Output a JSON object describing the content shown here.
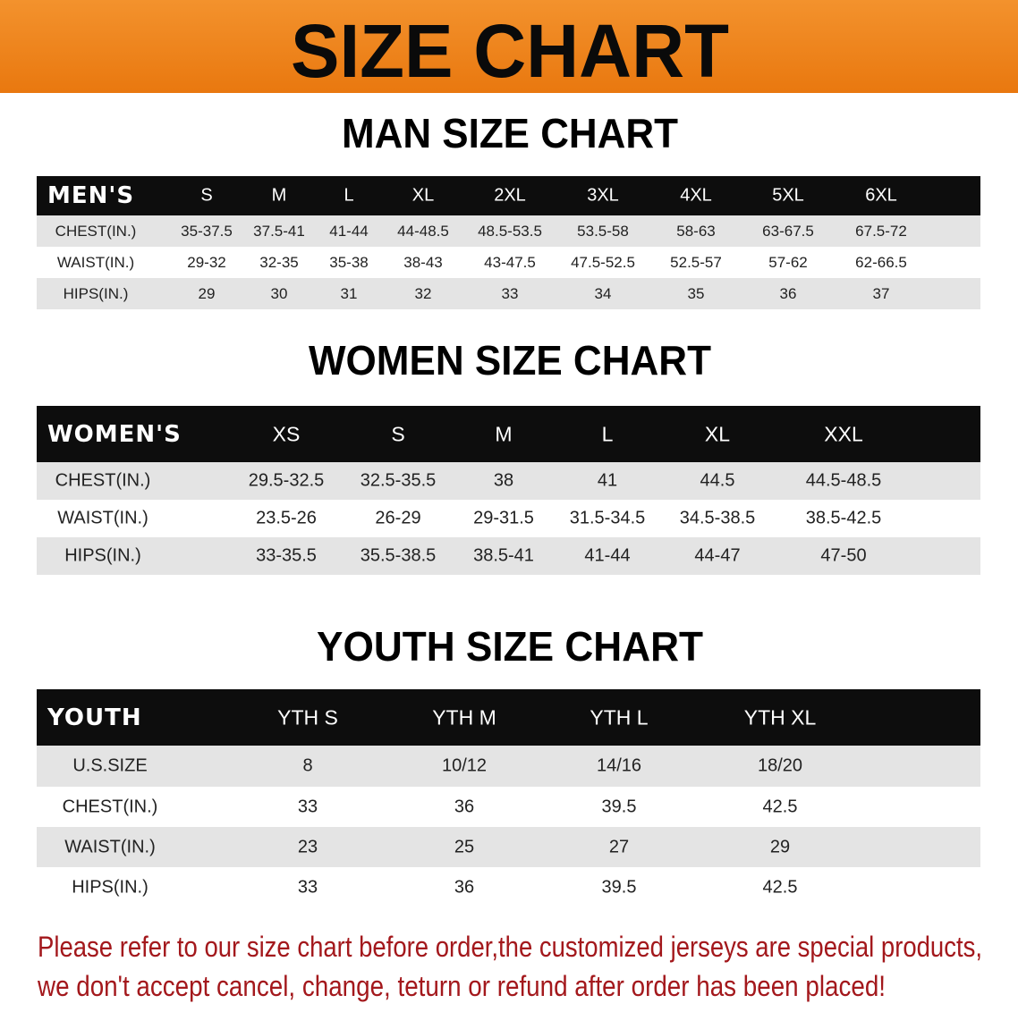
{
  "title": "SIZE CHART",
  "colors": {
    "banner": "#ee8420",
    "header_row": "#0d0d0d",
    "note_text": "#a3181c"
  },
  "men": {
    "section_title": "MAN SIZE CHART",
    "columns": [
      "MEN'S",
      "S",
      "M",
      "L",
      "XL",
      "2XL",
      "3XL",
      "4XL",
      "5XL",
      "6XL"
    ],
    "rows": [
      [
        "CHEST(IN.)",
        "35-37.5",
        "37.5-41",
        "41-44",
        "44-48.5",
        "48.5-53.5",
        "53.5-58",
        "58-63",
        "63-67.5",
        "67.5-72"
      ],
      [
        "WAIST(IN.)",
        "29-32",
        "32-35",
        "35-38",
        "38-43",
        "43-47.5",
        "47.5-52.5",
        "52.5-57",
        "57-62",
        "62-66.5"
      ],
      [
        "HIPS(IN.)",
        "29",
        "30",
        "31",
        "32",
        "33",
        "34",
        "35",
        "36",
        "37"
      ]
    ]
  },
  "women": {
    "section_title": "WOMEN SIZE CHART",
    "columns": [
      "WOMEN'S",
      "XS",
      "S",
      "M",
      "L",
      "XL",
      "XXL"
    ],
    "rows": [
      [
        "CHEST(IN.)",
        "29.5-32.5",
        "32.5-35.5",
        "38",
        "41",
        "44.5",
        "44.5-48.5"
      ],
      [
        "WAIST(IN.)",
        "23.5-26",
        "26-29",
        "29-31.5",
        "31.5-34.5",
        "34.5-38.5",
        "38.5-42.5"
      ],
      [
        "HIPS(IN.)",
        "33-35.5",
        "35.5-38.5",
        "38.5-41",
        "41-44",
        "44-47",
        "47-50"
      ]
    ]
  },
  "youth": {
    "section_title": "YOUTH SIZE CHART",
    "columns": [
      "YOUTH",
      "YTH S",
      "YTH M",
      "YTH L",
      "YTH XL"
    ],
    "rows": [
      [
        "U.S.SIZE",
        "8",
        "10/12",
        "14/16",
        "18/20"
      ],
      [
        "CHEST(IN.)",
        "33",
        "36",
        "39.5",
        "42.5"
      ],
      [
        "WAIST(IN.)",
        "23",
        "25",
        "27",
        "29"
      ],
      [
        "HIPS(IN.)",
        "33",
        "36",
        "39.5",
        "42.5"
      ]
    ]
  },
  "note": {
    "line1": "Please refer to our size chart before order,the customized jerseys are special products,",
    "line2": "we don't accept cancel, change, teturn or refund after order has been placed!"
  }
}
